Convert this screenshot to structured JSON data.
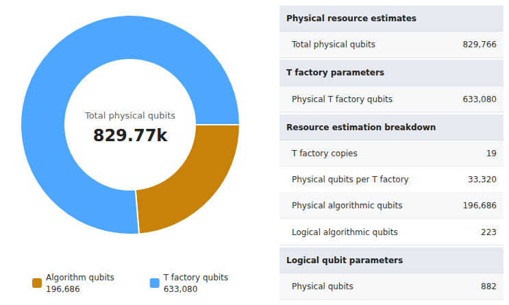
{
  "chart_data": [
    {
      "type": "pie",
      "categories": [
        "Algorithm qubits",
        "T factory qubits"
      ],
      "values": [
        196686,
        633080
      ],
      "value_labels": [
        "196,686",
        "633,080"
      ],
      "colors": [
        "#c8820a",
        "#4da6ff"
      ],
      "legend": "bottom",
      "annotations": [
        "Total physical qubits",
        "829.77k"
      ]
    },
    {
      "type": "table",
      "sections": [
        {
          "title": "Physical resource estimates",
          "categories": [
            "Total physical qubits"
          ],
          "values": [
            829766
          ],
          "value_labels": [
            "829,766"
          ]
        },
        {
          "title": "T factory parameters",
          "categories": [
            "Physical T factory qubits"
          ],
          "values": [
            633080
          ],
          "value_labels": [
            "633,080"
          ]
        },
        {
          "title": "Resource estimation breakdown",
          "categories": [
            "T factory copies",
            "Physical qubits per T factory",
            "Physical algorithmic qubits",
            "Logical algorithmic qubits"
          ],
          "values": [
            19,
            33320,
            196686,
            223
          ],
          "value_labels": [
            "19",
            "33,320",
            "196,686",
            "223"
          ]
        },
        {
          "title": "Logical qubit parameters",
          "categories": [
            "Physical qubits"
          ],
          "values": [
            882
          ],
          "value_labels": [
            "882"
          ]
        }
      ]
    }
  ]
}
